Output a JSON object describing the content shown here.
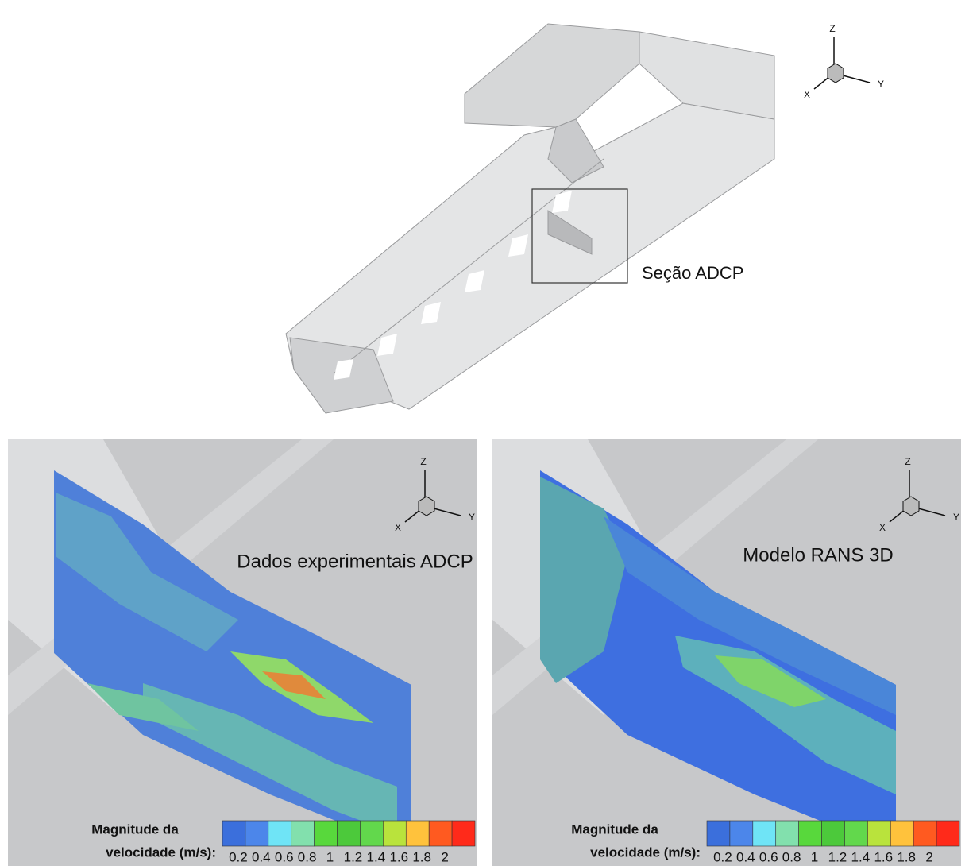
{
  "top_figure": {
    "axes": {
      "z": "Z",
      "x": "X",
      "y": "Y"
    },
    "section_label": "Seção ADCP"
  },
  "panels": [
    {
      "title": "Dados experimentais ADCP",
      "axes": {
        "z": "Z",
        "x": "X",
        "y": "Y"
      },
      "colorbar": {
        "label_line1": "Magnitude da",
        "label_line2": "velocidade (m/s):",
        "ticks": [
          0.2,
          0.4,
          0.6,
          0.8,
          1,
          1.2,
          1.4,
          1.6,
          1.8,
          2
        ],
        "colors": [
          "#3b6fdc",
          "#4c86ea",
          "#6fe4f6",
          "#82e0ad",
          "#58d83c",
          "#4cc93b",
          "#62d84c",
          "#b9e33c",
          "#ffc23c",
          "#ff5a20",
          "#ff2a1a"
        ]
      }
    },
    {
      "title": "Modelo RANS 3D",
      "axes": {
        "z": "Z",
        "x": "X",
        "y": "Y"
      },
      "colorbar": {
        "label_line1": "Magnitude da",
        "label_line2": "velocidade (m/s):",
        "ticks": [
          0.2,
          0.4,
          0.6,
          0.8,
          1,
          1.2,
          1.4,
          1.6,
          1.8,
          2
        ],
        "colors": [
          "#3b6fdc",
          "#4c86ea",
          "#6fe4f6",
          "#82e0ad",
          "#58d83c",
          "#4cc93b",
          "#62d84c",
          "#b9e33c",
          "#ffc23c",
          "#ff5a20",
          "#ff2a1a"
        ]
      }
    }
  ]
}
